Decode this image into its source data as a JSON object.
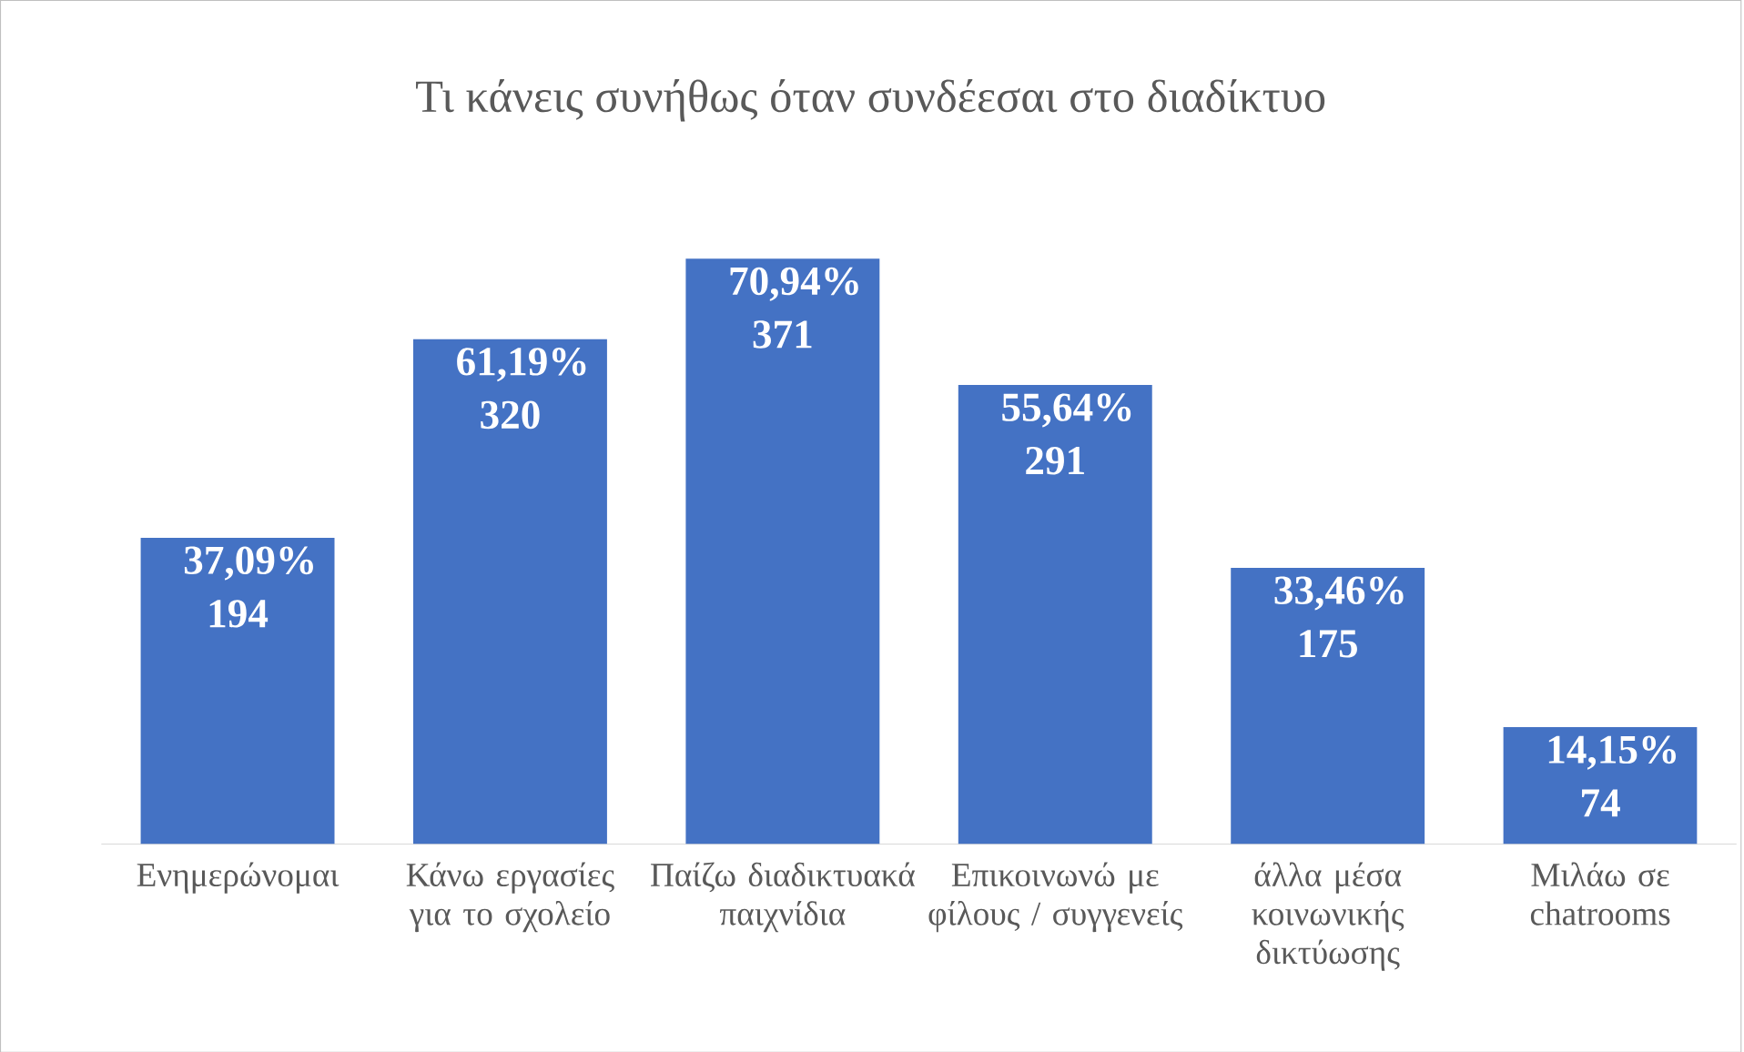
{
  "chart_data": {
    "type": "bar",
    "title": "Τι κάνεις συνήθως όταν συνδέεσαι στο διαδίκτυο",
    "categories": [
      "Ενημερώνομαι",
      "Κάνω εργασίες για το σχολείο",
      "Παίζω διαδικτυακά παιχνίδια",
      "Επικοινωνώ με φίλους / συγγενείς",
      "άλλα μέσα κοινωνικής δικτύωσης",
      "Μιλάω σε chatrooms"
    ],
    "values": [
      194,
      320,
      371,
      291,
      175,
      74
    ],
    "value_labels": [
      "37,09% 194",
      "61,19% 320",
      "70,94% 371",
      "55,64% 291",
      "33,46% 175",
      "14,15% 74"
    ],
    "color": "#4472c4"
  }
}
